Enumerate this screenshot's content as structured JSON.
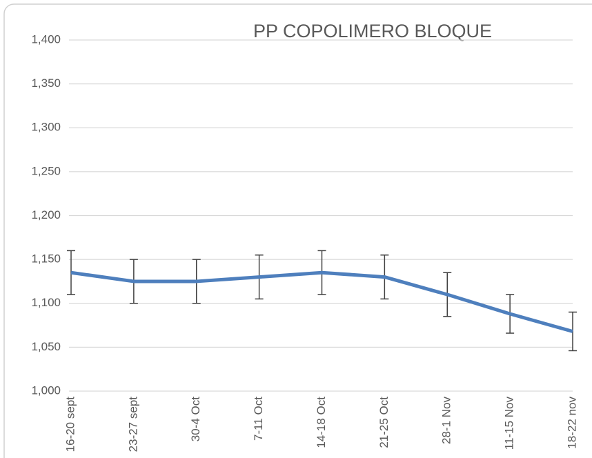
{
  "chart_data": {
    "type": "line",
    "title": "PP  COPOLIMERO BLOQUE",
    "categories": [
      "16-20 sept",
      "23-27 sept",
      "30-4 Oct",
      "7-11 Oct",
      "14-18 Oct",
      "21-25 Oct",
      "28-1 Nov",
      "11-15 Nov",
      "18-22 nov"
    ],
    "series": [
      {
        "name": "PP COPOLIMERO BLOQUE",
        "color": "#4e7fbd",
        "values": [
          1135,
          1125,
          1125,
          1130,
          1135,
          1130,
          1110,
          1088,
          1068
        ],
        "errors": [
          25,
          25,
          25,
          25,
          25,
          25,
          25,
          22,
          22
        ]
      }
    ],
    "ylim": [
      1000,
      1400
    ],
    "yticks": [
      {
        "value": 1000,
        "label": "1,000"
      },
      {
        "value": 1050,
        "label": "1,050"
      },
      {
        "value": 1100,
        "label": "1,100"
      },
      {
        "value": 1150,
        "label": "1,150"
      },
      {
        "value": 1200,
        "label": "1,200"
      },
      {
        "value": 1250,
        "label": "1,250"
      },
      {
        "value": 1300,
        "label": "1,300"
      },
      {
        "value": 1350,
        "label": "1,350"
      },
      {
        "value": 1400,
        "label": "1,400"
      }
    ],
    "grid": true
  }
}
